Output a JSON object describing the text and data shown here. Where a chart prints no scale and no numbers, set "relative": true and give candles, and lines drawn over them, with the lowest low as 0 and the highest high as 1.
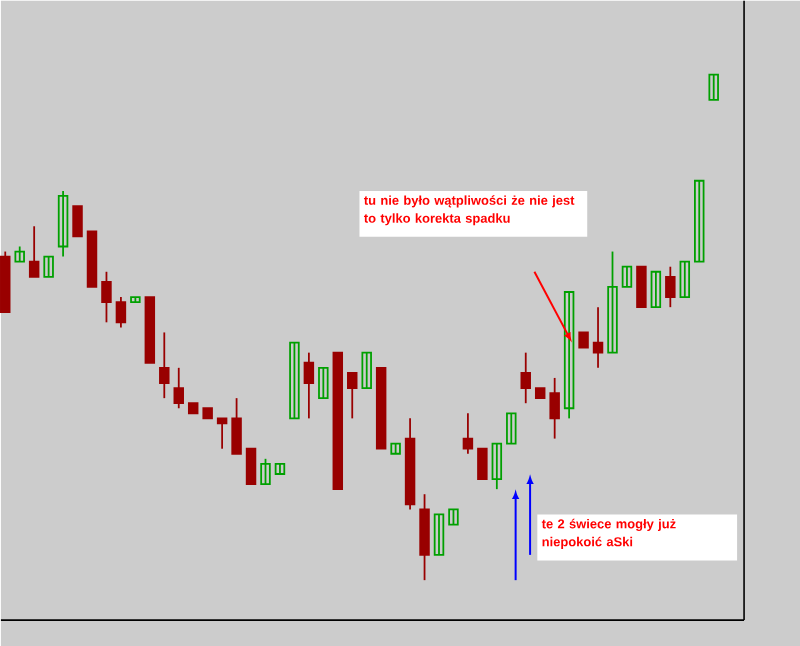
{
  "chart_data": {
    "type": "candlestick",
    "relative": true,
    "categories": [
      null,
      null,
      null,
      null,
      null,
      null,
      null,
      null,
      null,
      null,
      null,
      null,
      null,
      null,
      null,
      null,
      null,
      null,
      null,
      null,
      null,
      null,
      null,
      null,
      null,
      null,
      null,
      null,
      null,
      null,
      null,
      null,
      null,
      null,
      null,
      null,
      null,
      null,
      null,
      null,
      null,
      null,
      null,
      null,
      null,
      null,
      null,
      null,
      null,
      null
    ],
    "ohlc": [
      [
        0.64,
        0.65,
        0.53,
        0.53
      ],
      [
        0.63,
        0.66,
        0.63,
        0.65
      ],
      [
        0.63,
        0.7,
        0.6,
        0.6
      ],
      [
        0.6,
        0.64,
        0.6,
        0.64
      ],
      [
        0.66,
        0.77,
        0.64,
        0.76
      ],
      [
        0.74,
        0.74,
        0.68,
        0.68
      ],
      [
        0.69,
        0.69,
        0.58,
        0.58
      ],
      [
        0.59,
        0.61,
        0.51,
        0.55
      ],
      [
        0.55,
        0.56,
        0.5,
        0.51
      ],
      [
        0.55,
        0.56,
        0.55,
        0.56
      ],
      [
        0.56,
        0.56,
        0.43,
        0.43
      ],
      [
        0.42,
        0.49,
        0.36,
        0.39
      ],
      [
        0.38,
        0.42,
        0.34,
        0.35
      ],
      [
        0.35,
        0.35,
        0.33,
        0.33
      ],
      [
        0.34,
        0.34,
        0.32,
        0.32
      ],
      [
        0.32,
        0.32,
        0.26,
        0.31
      ],
      [
        0.32,
        0.36,
        0.25,
        0.25
      ],
      [
        0.26,
        0.26,
        0.19,
        0.19
      ],
      [
        0.19,
        0.24,
        0.19,
        0.23
      ],
      [
        0.21,
        0.23,
        0.21,
        0.23
      ],
      [
        0.32,
        0.47,
        0.32,
        0.47
      ],
      [
        0.43,
        0.45,
        0.32,
        0.39
      ],
      [
        0.36,
        0.42,
        0.36,
        0.42
      ],
      [
        0.45,
        0.45,
        0.18,
        0.18
      ],
      [
        0.41,
        0.41,
        0.32,
        0.38
      ],
      [
        0.38,
        0.45,
        0.38,
        0.45
      ],
      [
        0.42,
        0.42,
        0.26,
        0.26
      ],
      [
        0.25,
        0.27,
        0.25,
        0.27
      ],
      [
        0.28,
        0.32,
        0.14,
        0.15
      ],
      [
        0.14,
        0.17,
        0,
        0.05
      ],
      [
        0.05,
        0.13,
        0.05,
        0.13
      ],
      [
        0.11,
        0.14,
        0.11,
        0.14
      ],
      [
        0.28,
        0.33,
        0.25,
        0.26
      ],
      [
        0.26,
        0.26,
        0.2,
        0.2
      ],
      [
        0.2,
        0.27,
        0.18,
        0.27
      ],
      [
        0.27,
        0.33,
        0.27,
        0.33
      ],
      [
        0.41,
        0.45,
        0.35,
        0.38
      ],
      [
        0.38,
        0.38,
        0.36,
        0.36
      ],
      [
        0.37,
        0.4,
        0.28,
        0.32
      ],
      [
        0.34,
        0.57,
        0.32,
        0.57
      ],
      [
        0.49,
        0.49,
        0.46,
        0.46
      ],
      [
        0.47,
        0.54,
        0.42,
        0.45
      ],
      [
        0.45,
        0.65,
        0.45,
        0.58
      ],
      [
        0.58,
        0.62,
        0.58,
        0.62
      ],
      [
        0.62,
        0.62,
        0.54,
        0.54
      ],
      [
        0.54,
        0.61,
        0.54,
        0.61
      ],
      [
        0.6,
        0.62,
        0.54,
        0.56
      ],
      [
        0.56,
        0.63,
        0.56,
        0.63
      ],
      [
        0.63,
        0.79,
        0.63,
        0.79
      ],
      [
        0.95,
        1,
        0.95,
        1
      ]
    ],
    "colors": [
      "#990000",
      "#00a000",
      "#990000",
      "#00a000",
      "#00a000",
      "#990000",
      "#990000",
      "#990000",
      "#990000",
      "#00a000",
      "#990000",
      "#990000",
      "#990000",
      "#990000",
      "#990000",
      "#990000",
      "#990000",
      "#990000",
      "#00a000",
      "#00a000",
      "#00a000",
      "#990000",
      "#00a000",
      "#990000",
      "#990000",
      "#00a000",
      "#990000",
      "#00a000",
      "#990000",
      "#990000",
      "#00a000",
      "#00a000",
      "#990000",
      "#990000",
      "#00a000",
      "#00a000",
      "#990000",
      "#990000",
      "#990000",
      "#00a000",
      "#990000",
      "#990000",
      "#00a000",
      "#00a000",
      "#990000",
      "#00a000",
      "#990000",
      "#00a000",
      "#00a000",
      "#00a000"
    ],
    "annotations": [
      "tu nie było wątpliwości że nie jest to  tylko korekta spadku",
      "te 2 świece mogły już niepokoić aSki"
    ]
  }
}
